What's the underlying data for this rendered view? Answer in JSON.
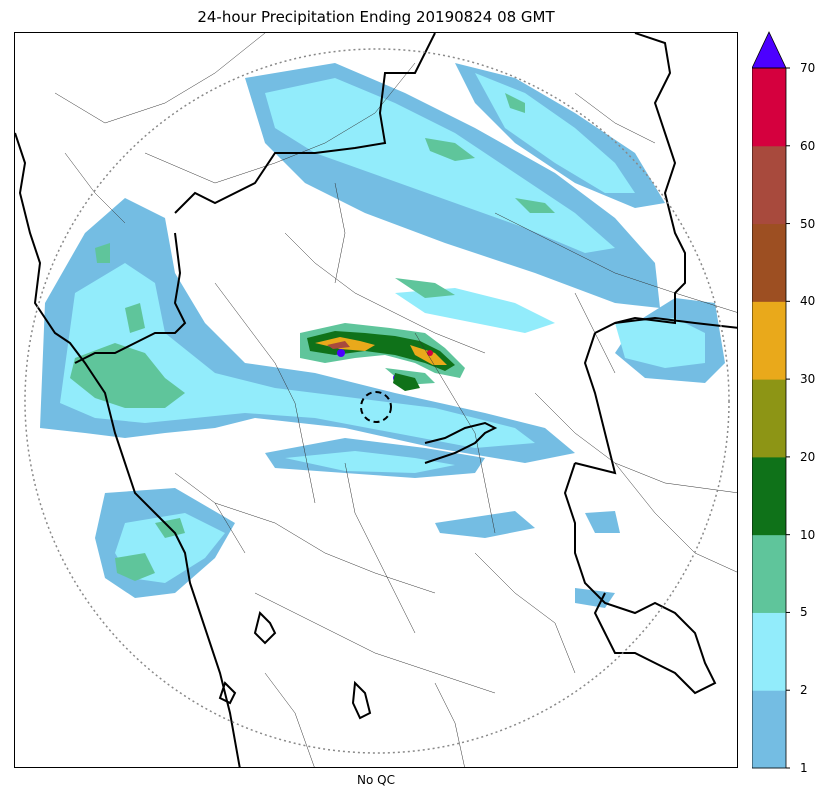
{
  "title": "24-hour Precipitation Ending 20190824 08 GMT",
  "xlabel": "No QC",
  "colorbar": {
    "ticks": [
      "1",
      "2",
      "5",
      "10",
      "20",
      "30",
      "40",
      "50",
      "60",
      "70"
    ],
    "colors": [
      "#74bde3",
      "#92ecfb",
      "#5fc59b",
      "#0f7219",
      "#8d9515",
      "#e9a91b",
      "#9d4f22",
      "#a84a3d",
      "#d5003e"
    ],
    "over_color": "#4c00ff",
    "extend": "max"
  },
  "legend_bins": [
    {
      "min": 1,
      "max": 2,
      "color": "#74bde3"
    },
    {
      "min": 2,
      "max": 5,
      "color": "#92ecfb"
    },
    {
      "min": 5,
      "max": 10,
      "color": "#5fc59b"
    },
    {
      "min": 10,
      "max": 20,
      "color": "#0f7219"
    },
    {
      "min": 20,
      "max": 30,
      "color": "#8d9515"
    },
    {
      "min": 30,
      "max": 40,
      "color": "#e9a91b"
    },
    {
      "min": 40,
      "max": 50,
      "color": "#9d4f22"
    },
    {
      "min": 50,
      "max": 60,
      "color": "#a84a3d"
    },
    {
      "min": 60,
      "max": 70,
      "color": "#d5003e"
    }
  ]
}
